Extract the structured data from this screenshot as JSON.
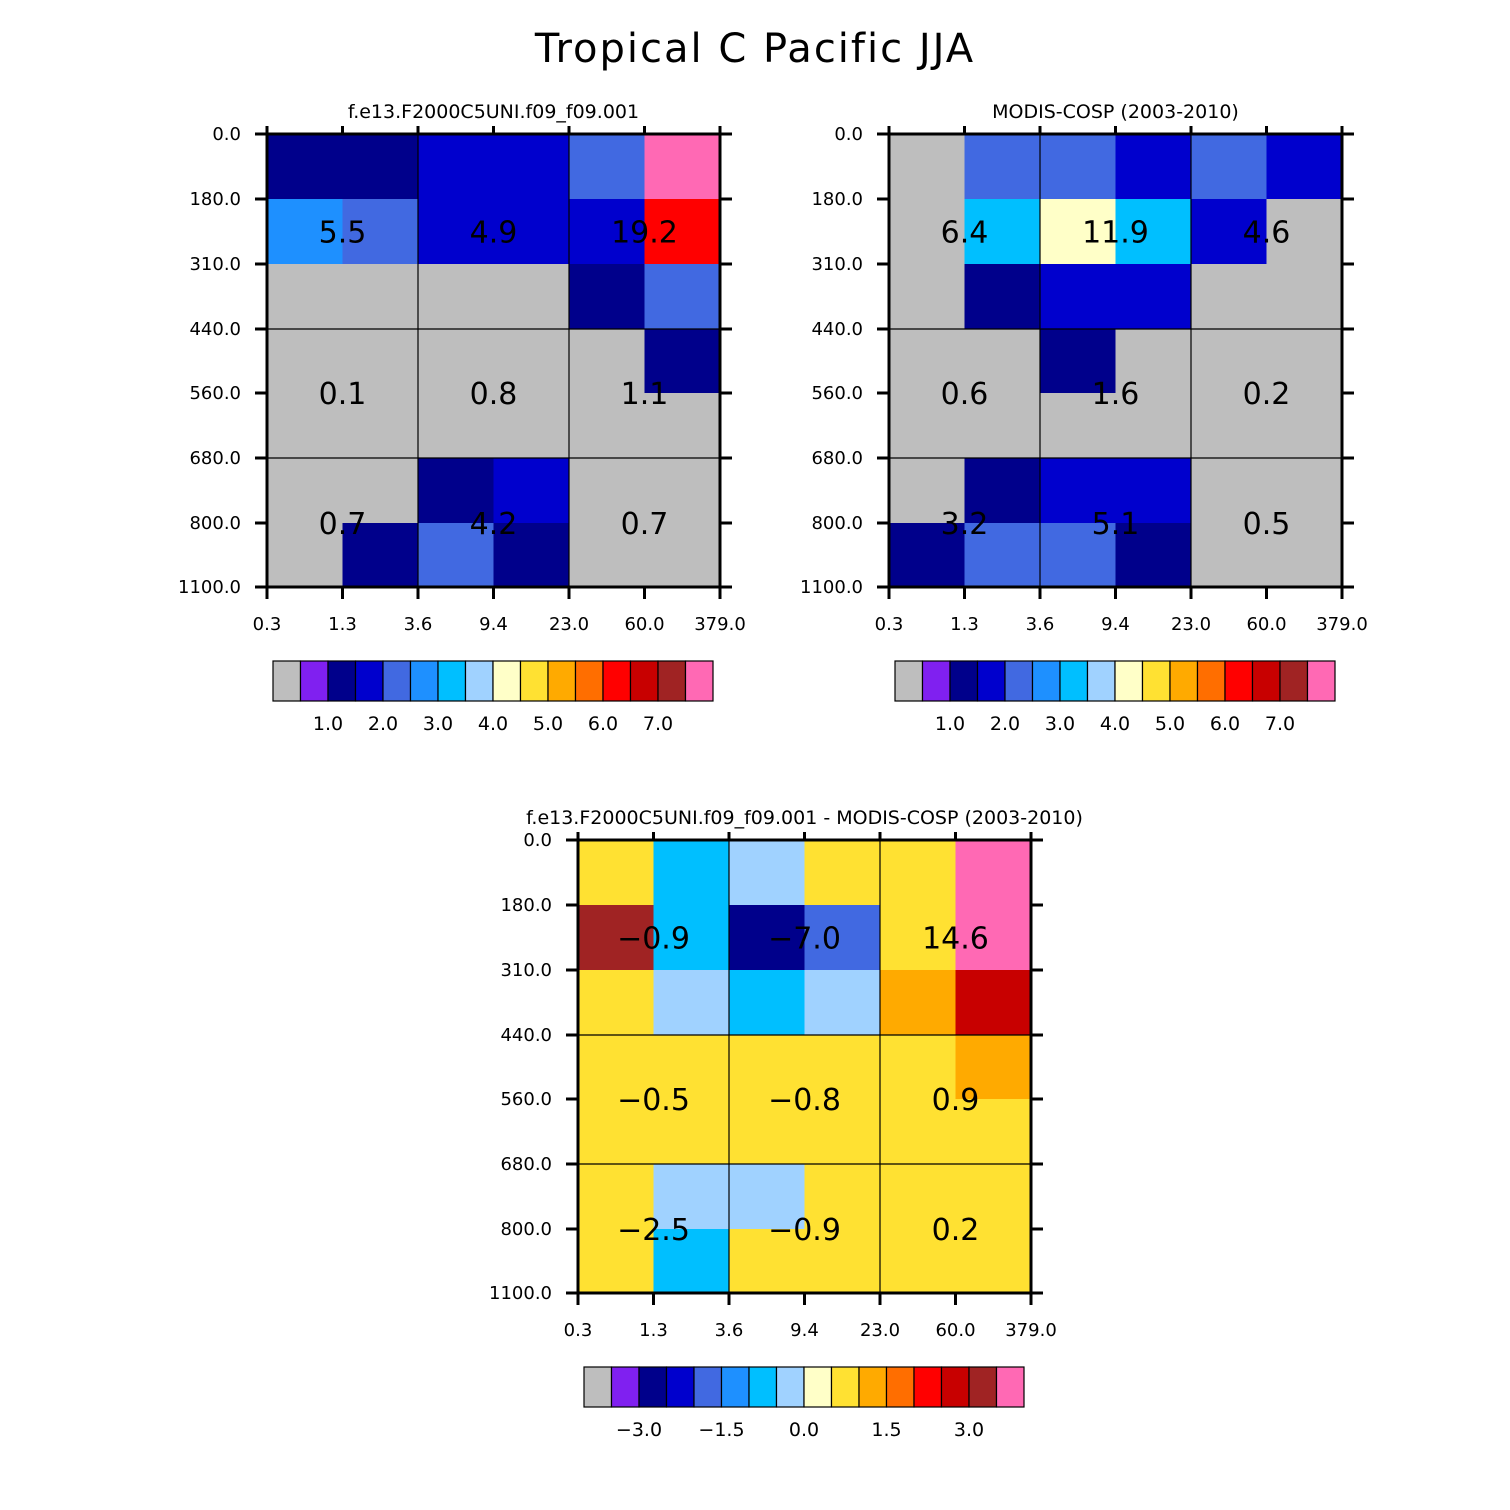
{
  "title": "Tropical C Pacific JJA",
  "chart_data": [
    {
      "type": "heatmap",
      "title": "f.e13.F2000C5UNI.f09_f09.001",
      "xlabel": "",
      "ylabel": "",
      "x_ticks": [
        "0.3",
        "1.3",
        "3.6",
        "9.4",
        "23.0",
        "60.0",
        "379.0"
      ],
      "y_ticks": [
        "0.0",
        "180.0",
        "310.0",
        "440.0",
        "560.0",
        "680.0",
        "800.0",
        "1100.0"
      ],
      "rows_top_to_bottom": [
        [
          1.0,
          1.0,
          1.5,
          1.5,
          2.0,
          7.5
        ],
        [
          2.5,
          2.0,
          1.5,
          1.5,
          1.5,
          6.0
        ],
        [
          "missing",
          "missing",
          "missing",
          "missing",
          1.0,
          2.0
        ],
        [
          "missing",
          "missing",
          "missing",
          "missing",
          "missing",
          1.0
        ],
        [
          "missing",
          "missing",
          "missing",
          "missing",
          "missing",
          "missing"
        ],
        [
          "missing",
          "missing",
          1.0,
          1.5,
          "missing",
          "missing"
        ],
        [
          "missing",
          1.0,
          2.0,
          1.0,
          "missing",
          "missing"
        ]
      ],
      "annotations": [
        {
          "row": "180.0-440.0",
          "col": "0.3-3.6",
          "text": "5.5"
        },
        {
          "row": "180.0-440.0",
          "col": "3.6-23.0",
          "text": "4.9"
        },
        {
          "row": "180.0-440.0",
          "col": "23.0-379.0",
          "text": "19.2"
        },
        {
          "row": "440.0-680.0",
          "col": "0.3-3.6",
          "text": "0.1"
        },
        {
          "row": "440.0-680.0",
          "col": "3.6-23.0",
          "text": "0.8"
        },
        {
          "row": "440.0-680.0",
          "col": "23.0-379.0",
          "text": "1.1"
        },
        {
          "row": "680.0-1100.0",
          "col": "0.3-3.6",
          "text": "0.7"
        },
        {
          "row": "680.0-1100.0",
          "col": "3.6-23.0",
          "text": "4.2"
        },
        {
          "row": "680.0-1100.0",
          "col": "23.0-379.0",
          "text": "0.7"
        }
      ],
      "colorbar": {
        "colors": [
          "#bebebe",
          "#8020f0",
          "#00008b",
          "#0000cd",
          "#4169e1",
          "#1e90ff",
          "#00bfff",
          "#a0d2ff",
          "#ffffc8",
          "#ffe132",
          "#ffaa00",
          "#ff6e00",
          "#ff0000",
          "#c80000",
          "#a02323",
          "#ff69b4"
        ],
        "labels": [
          "1.0",
          "2.0",
          "3.0",
          "4.0",
          "5.0",
          "6.0",
          "7.0"
        ],
        "label_after_box": [
          2,
          4,
          6,
          8,
          10,
          12,
          14
        ]
      }
    },
    {
      "type": "heatmap",
      "title": "MODIS-COSP (2003-2010)",
      "xlabel": "",
      "ylabel": "",
      "x_ticks": [
        "0.3",
        "1.3",
        "3.6",
        "9.4",
        "23.0",
        "60.0",
        "379.0"
      ],
      "y_ticks": [
        "0.0",
        "180.0",
        "310.0",
        "440.0",
        "560.0",
        "680.0",
        "800.0",
        "1100.0"
      ],
      "rows_top_to_bottom": [
        [
          "missing",
          2.0,
          2.0,
          1.5,
          2.0,
          1.5
        ],
        [
          "missing",
          3.0,
          4.0,
          3.0,
          1.5,
          "missing"
        ],
        [
          "missing",
          1.0,
          1.5,
          1.5,
          "missing",
          "missing"
        ],
        [
          "missing",
          "missing",
          1.0,
          "missing",
          "missing",
          "missing"
        ],
        [
          "missing",
          "missing",
          "missing",
          "missing",
          "missing",
          "missing"
        ],
        [
          "missing",
          1.0,
          1.5,
          1.5,
          "missing",
          "missing"
        ],
        [
          1.0,
          2.0,
          2.0,
          1.0,
          "missing",
          "missing"
        ]
      ],
      "annotations": [
        {
          "row": "180.0-440.0",
          "col": "0.3-3.6",
          "text": "6.4"
        },
        {
          "row": "180.0-440.0",
          "col": "3.6-23.0",
          "text": "11.9"
        },
        {
          "row": "180.0-440.0",
          "col": "23.0-379.0",
          "text": "4.6"
        },
        {
          "row": "440.0-680.0",
          "col": "0.3-3.6",
          "text": "0.6"
        },
        {
          "row": "440.0-680.0",
          "col": "3.6-23.0",
          "text": "1.6"
        },
        {
          "row": "440.0-680.0",
          "col": "23.0-379.0",
          "text": "0.2"
        },
        {
          "row": "680.0-1100.0",
          "col": "0.3-3.6",
          "text": "3.2"
        },
        {
          "row": "680.0-1100.0",
          "col": "3.6-23.0",
          "text": "5.1"
        },
        {
          "row": "680.0-1100.0",
          "col": "23.0-379.0",
          "text": "0.5"
        }
      ],
      "colorbar": {
        "colors": [
          "#bebebe",
          "#8020f0",
          "#00008b",
          "#0000cd",
          "#4169e1",
          "#1e90ff",
          "#00bfff",
          "#a0d2ff",
          "#ffffc8",
          "#ffe132",
          "#ffaa00",
          "#ff6e00",
          "#ff0000",
          "#c80000",
          "#a02323",
          "#ff69b4"
        ],
        "labels": [
          "1.0",
          "2.0",
          "3.0",
          "4.0",
          "5.0",
          "6.0",
          "7.0"
        ],
        "label_after_box": [
          2,
          4,
          6,
          8,
          10,
          12,
          14
        ]
      }
    },
    {
      "type": "heatmap",
      "title": "f.e13.F2000C5UNI.f09_f09.001 - MODIS-COSP (2003-2010)",
      "xlabel": "",
      "ylabel": "",
      "x_ticks": [
        "0.3",
        "1.3",
        "3.6",
        "9.4",
        "23.0",
        "60.0",
        "379.0"
      ],
      "y_ticks": [
        "0.0",
        "180.0",
        "310.0",
        "440.0",
        "560.0",
        "680.0",
        "800.0",
        "1100.0"
      ],
      "rows_top_to_bottom": [
        [
          0.25,
          -1.25,
          -0.75,
          0.0,
          0.25,
          3.75
        ],
        [
          2.75,
          -1.25,
          -3.25,
          -2.25,
          0.25,
          3.75
        ],
        [
          0.0,
          -0.75,
          -1.25,
          -0.75,
          0.75,
          2.25
        ],
        [
          0.0,
          0.0,
          0.0,
          0.0,
          0.25,
          0.75
        ],
        [
          0.0,
          0.0,
          0.0,
          0.0,
          0.25,
          0.25
        ],
        [
          0.0,
          -0.75,
          -0.75,
          0.25,
          0.25,
          0.0
        ],
        [
          0.0,
          -1.25,
          0.0,
          0.25,
          0.25,
          0.0
        ]
      ],
      "annotations": [
        {
          "row": "180.0-440.0",
          "col": "0.3-3.6",
          "text": "−0.9"
        },
        {
          "row": "180.0-440.0",
          "col": "3.6-23.0",
          "text": "−7.0"
        },
        {
          "row": "180.0-440.0",
          "col": "23.0-379.0",
          "text": "14.6"
        },
        {
          "row": "440.0-680.0",
          "col": "0.3-3.6",
          "text": "−0.5"
        },
        {
          "row": "440.0-680.0",
          "col": "3.6-23.0",
          "text": "−0.8"
        },
        {
          "row": "440.0-680.0",
          "col": "23.0-379.0",
          "text": "0.9"
        },
        {
          "row": "680.0-1100.0",
          "col": "0.3-3.6",
          "text": "−2.5"
        },
        {
          "row": "680.0-1100.0",
          "col": "3.6-23.0",
          "text": "−0.9"
        },
        {
          "row": "680.0-1100.0",
          "col": "23.0-379.0",
          "text": "0.2"
        }
      ],
      "colorbar": {
        "colors": [
          "#bebebe",
          "#8020f0",
          "#00008b",
          "#0000cd",
          "#4169e1",
          "#1e90ff",
          "#00bfff",
          "#a0d2ff",
          "#ffffc8",
          "#ffe132",
          "#ffaa00",
          "#ff6e00",
          "#ff0000",
          "#c80000",
          "#a02323",
          "#ff69b4"
        ],
        "labels": [
          "−3.0",
          "−1.5",
          "0.0",
          "1.5",
          "3.0"
        ],
        "label_after_box": [
          2,
          5,
          8,
          11,
          14
        ]
      }
    }
  ]
}
